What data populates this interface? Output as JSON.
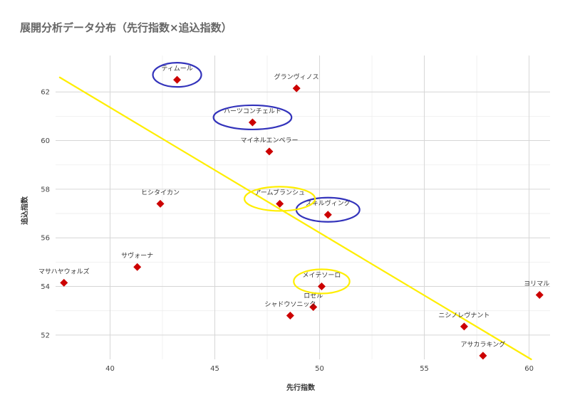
{
  "chart_data": {
    "type": "scatter",
    "title": "展開分析データ分布（先行指数×追込指数）",
    "xlabel": "先行指数",
    "ylabel": "追込指数",
    "xlim": [
      37.4,
      61.0
    ],
    "ylim": [
      51.0,
      63.5
    ],
    "xticks": [
      40,
      45,
      50,
      55,
      60
    ],
    "yticks": [
      52,
      54,
      56,
      58,
      60,
      62
    ],
    "grid": true,
    "marker_color": "#cc0000",
    "points": [
      {
        "label": "ティムール",
        "x": 43.2,
        "y": 62.5
      },
      {
        "label": "グランヴィノス",
        "x": 48.9,
        "y": 62.15
      },
      {
        "label": "ハーツコンチェルト",
        "x": 46.8,
        "y": 60.75
      },
      {
        "label": "マイネルエンペラー",
        "x": 47.6,
        "y": 59.55
      },
      {
        "label": "ヒシタイカン",
        "x": 42.4,
        "y": 57.4
      },
      {
        "label": "アームブランシュ",
        "x": 48.1,
        "y": 57.4
      },
      {
        "label": "スキルヴィング",
        "x": 50.4,
        "y": 56.95
      },
      {
        "label": "サヴォーナ",
        "x": 41.3,
        "y": 54.8
      },
      {
        "label": "マサハヤウォルズ",
        "x": 37.8,
        "y": 54.15
      },
      {
        "label": "メイテソーロ",
        "x": 50.1,
        "y": 54.0
      },
      {
        "label": "ロゼル",
        "x": 49.7,
        "y": 53.15
      },
      {
        "label": "シャドウソニック",
        "x": 48.6,
        "y": 52.8
      },
      {
        "label": "ヨリマル",
        "x": 60.5,
        "y": 53.65
      },
      {
        "label": "ニシノレヴナント",
        "x": 56.9,
        "y": 52.35
      },
      {
        "label": "アサカラキング",
        "x": 57.8,
        "y": 51.15
      }
    ],
    "trend_line": {
      "color": "#ffee00",
      "x": [
        37.6,
        60.1
      ],
      "y": [
        62.6,
        51.0
      ]
    },
    "highlights": [
      {
        "label": "ティムール",
        "color": "#3333bb"
      },
      {
        "label": "ハーツコンチェルト",
        "color": "#3333bb"
      },
      {
        "label": "スキルヴィング",
        "color": "#3333bb"
      },
      {
        "label": "アームブランシュ",
        "color": "#ffee00"
      },
      {
        "label": "メイテソーロ",
        "color": "#ffee00"
      }
    ]
  }
}
